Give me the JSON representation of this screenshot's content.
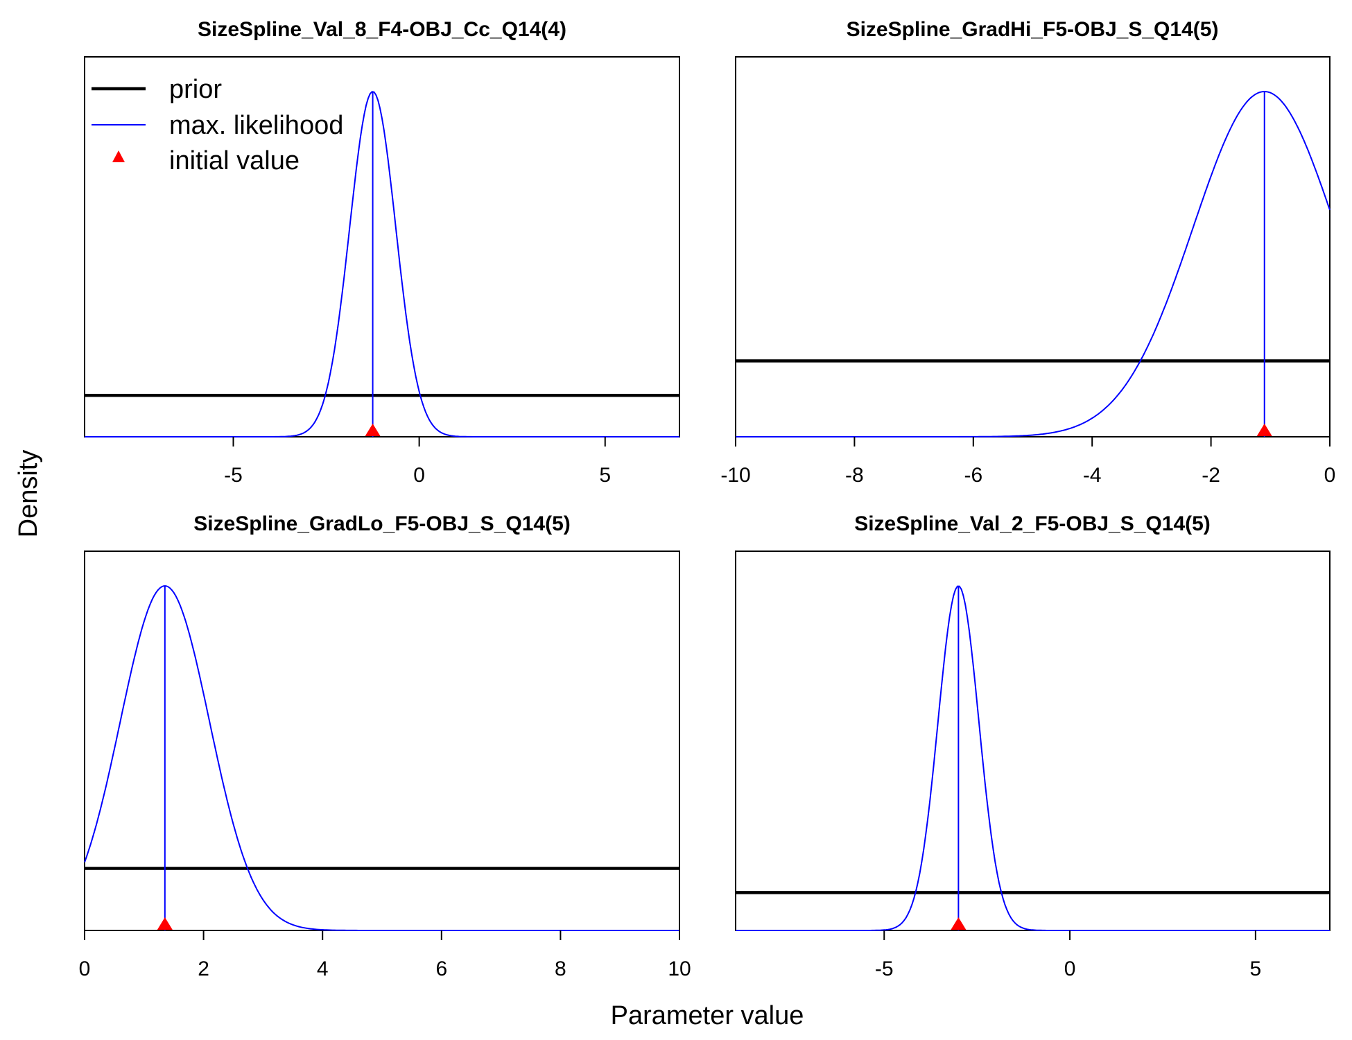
{
  "figure": {
    "ylabel": "Density",
    "xlabel": "Parameter value",
    "colors": {
      "prior": "#000000",
      "likelihood": "#0000FF",
      "initial": "#FF0000"
    }
  },
  "legend": {
    "placement": "top-left of first panel",
    "items": [
      {
        "label": "prior",
        "style": "thick-black-line"
      },
      {
        "label": "max. likelihood",
        "style": "thin-blue-line"
      },
      {
        "label": "initial value",
        "style": "red-triangle"
      }
    ]
  },
  "chart_data": [
    {
      "type": "line",
      "title": "SizeSpline_Val_8_F4-OBJ_Cc_Q14(4)",
      "xlim": [
        -9,
        7
      ],
      "xticks": [
        -5,
        0,
        5
      ],
      "prior_level": 0.12,
      "likelihood": {
        "mean": -1.25,
        "sd": 0.62
      },
      "initial_value": -1.25,
      "mle_value": -1.25
    },
    {
      "type": "line",
      "title": "SizeSpline_GradHi_F5-OBJ_S_Q14(5)",
      "xlim": [
        -10,
        0
      ],
      "xticks": [
        -10,
        -8,
        -6,
        -4,
        -2,
        0
      ],
      "prior_level": 0.22,
      "likelihood": {
        "mean": -1.1,
        "sd": 1.2
      },
      "initial_value": -1.1,
      "mle_value": -1.1
    },
    {
      "type": "line",
      "title": "SizeSpline_GradLo_F5-OBJ_S_Q14(5)",
      "xlim": [
        0,
        10
      ],
      "xticks": [
        0,
        2,
        4,
        6,
        8,
        10
      ],
      "prior_level": 0.18,
      "likelihood": {
        "mean": 1.35,
        "sd": 0.75
      },
      "initial_value": 1.35,
      "mle_value": 1.35
    },
    {
      "type": "line",
      "title": "SizeSpline_Val_2_F5-OBJ_S_Q14(5)",
      "xlim": [
        -9,
        7
      ],
      "xticks": [
        -5,
        0,
        5
      ],
      "prior_level": 0.11,
      "likelihood": {
        "mean": -3.0,
        "sd": 0.55
      },
      "initial_value": -3.0,
      "mle_value": -3.0
    }
  ]
}
